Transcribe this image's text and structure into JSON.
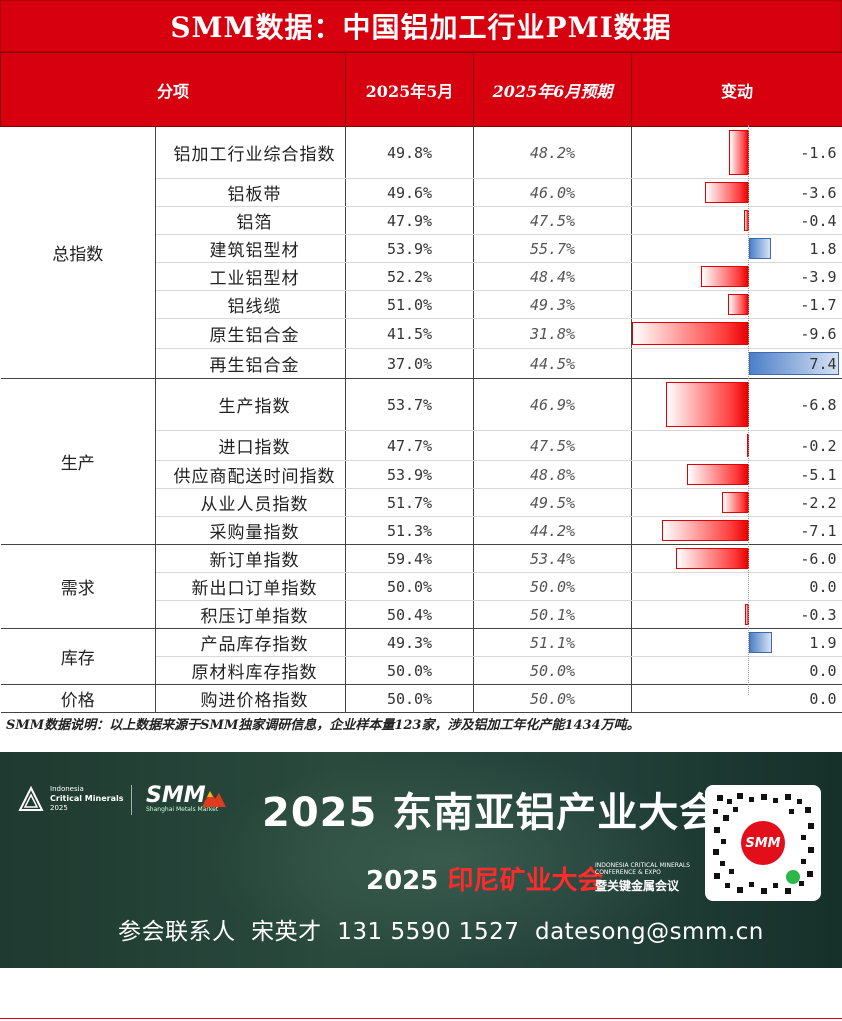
{
  "title": "SMM数据：中国铝加工行业PMI数据",
  "header": {
    "col_item": "分项",
    "col_may": "2025年5月",
    "col_jun": "2025年6月预期",
    "col_change": "变动"
  },
  "groups": [
    {
      "category": "总指数",
      "rows": [
        {
          "item": "铝加工行业综合指数",
          "may": "49.8%",
          "jun": "48.2%",
          "change": -1.6,
          "change_label": "-1.6"
        },
        {
          "item": "铝板带",
          "may": "49.6%",
          "jun": "46.0%",
          "change": -3.6,
          "change_label": "-3.6"
        },
        {
          "item": "铝箔",
          "may": "47.9%",
          "jun": "47.5%",
          "change": -0.4,
          "change_label": "-0.4"
        },
        {
          "item": "建筑铝型材",
          "may": "53.9%",
          "jun": "55.7%",
          "change": 1.8,
          "change_label": "1.8"
        },
        {
          "item": "工业铝型材",
          "may": "52.2%",
          "jun": "48.4%",
          "change": -3.9,
          "change_label": "-3.9"
        },
        {
          "item": "铝线缆",
          "may": "51.0%",
          "jun": "49.3%",
          "change": -1.7,
          "change_label": "-1.7"
        },
        {
          "item": "原生铝合金",
          "may": "41.5%",
          "jun": "31.8%",
          "change": -9.6,
          "change_label": "-9.6"
        },
        {
          "item": "再生铝合金",
          "may": "37.0%",
          "jun": "44.5%",
          "change": 7.4,
          "change_label": "7.4"
        }
      ]
    },
    {
      "category": "生产",
      "rows": [
        {
          "item": "生产指数",
          "may": "53.7%",
          "jun": "46.9%",
          "change": -6.8,
          "change_label": "-6.8"
        },
        {
          "item": "进口指数",
          "may": "47.7%",
          "jun": "47.5%",
          "change": -0.2,
          "change_label": "-0.2"
        },
        {
          "item": "供应商配送时间指数",
          "may": "53.9%",
          "jun": "48.8%",
          "change": -5.1,
          "change_label": "-5.1"
        },
        {
          "item": "从业人员指数",
          "may": "51.7%",
          "jun": "49.5%",
          "change": -2.2,
          "change_label": "-2.2"
        },
        {
          "item": "采购量指数",
          "may": "51.3%",
          "jun": "44.2%",
          "change": -7.1,
          "change_label": "-7.1"
        }
      ]
    },
    {
      "category": "需求",
      "rows": [
        {
          "item": "新订单指数",
          "may": "59.4%",
          "jun": "53.4%",
          "change": -6.0,
          "change_label": "-6.0"
        },
        {
          "item": "新出口订单指数",
          "may": "50.0%",
          "jun": "50.0%",
          "change": 0.0,
          "change_label": "0.0"
        },
        {
          "item": "积压订单指数",
          "may": "50.4%",
          "jun": "50.1%",
          "change": -0.3,
          "change_label": "-0.3"
        }
      ]
    },
    {
      "category": "库存",
      "rows": [
        {
          "item": "产品库存指数",
          "may": "49.3%",
          "jun": "51.1%",
          "change": 1.9,
          "change_label": "1.9"
        },
        {
          "item": "原材料库存指数",
          "may": "50.0%",
          "jun": "50.0%",
          "change": 0.0,
          "change_label": "0.0"
        }
      ]
    },
    {
      "category": "价格",
      "rows": [
        {
          "item": "购进价格指数",
          "may": "50.0%",
          "jun": "50.0%",
          "change": 0.0,
          "change_label": "0.0"
        }
      ]
    }
  ],
  "note": "SMM数据说明：以上数据来源于SMM独家调研信息，企业样本量123家，涉及铝加工年化产能1434万吨。",
  "banner": {
    "logo_line1": "Indonesia",
    "logo_line2": "Critical Minerals",
    "logo_line3": "2025",
    "smm_logo": "SMM",
    "smm_sub": "Shanghai Metals Market",
    "headline_year": "2025",
    "headline_text": "东南亚铝产业大会",
    "sub_year": "2025",
    "sub_text": "印尼矿业大会",
    "sub_en": "INDONESIA CRITICAL MINERALS CONFERENCE & EXPO",
    "sub_text2": "暨关键金属会议",
    "contact_label": "参会联系人",
    "contact_name": "宋英才",
    "contact_phone": "131 5590 1527",
    "contact_email": "datesong@smm.cn",
    "qr_logo": "SMM"
  },
  "colors": {
    "brand_red": "#d7000f",
    "neg_bar": "#ff3c3c",
    "pos_bar": "#4d80c8"
  }
}
